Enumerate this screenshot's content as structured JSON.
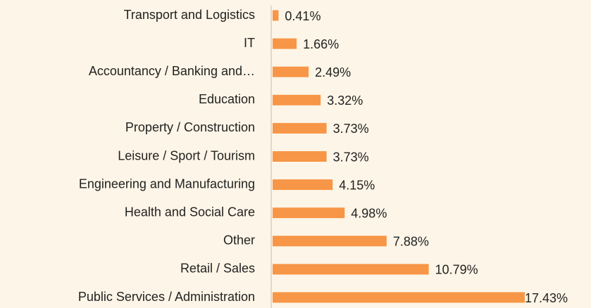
{
  "chart_data": {
    "type": "bar",
    "orientation": "horizontal",
    "categories": [
      "Transport and Logistics",
      "IT",
      "Accountancy / Banking and…",
      "Education",
      "Property / Construction",
      "Leisure / Sport / Tourism",
      "Engineering and Manufacturing",
      "Health and Social Care",
      "Other",
      "Retail / Sales",
      "Public Services / Administration"
    ],
    "values": [
      0.41,
      1.66,
      2.49,
      3.32,
      3.73,
      3.73,
      4.15,
      4.98,
      7.88,
      10.79,
      17.43
    ],
    "value_labels": [
      "0.41%",
      "1.66%",
      "2.49%",
      "3.32%",
      "3.73%",
      "3.73%",
      "4.15%",
      "4.98%",
      "7.88%",
      "10.79%",
      "17.43%"
    ],
    "color": "#f79646"
  }
}
